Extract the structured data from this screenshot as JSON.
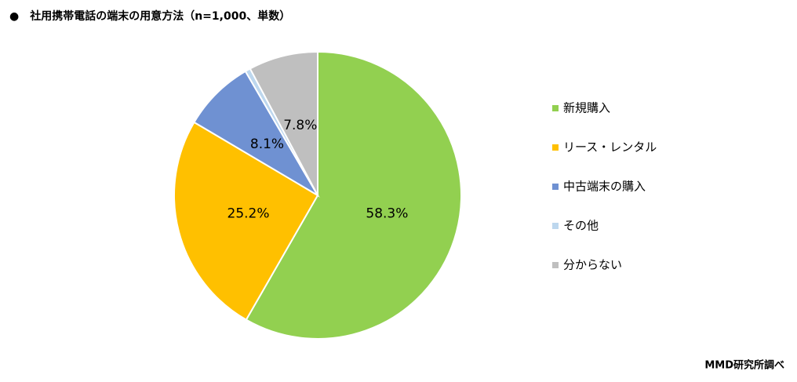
{
  "chart_data": {
    "type": "pie",
    "title": "●　社用携帯電話の端末の用意方法（n=1,000、単数）",
    "categories": [
      "新規購入",
      "リース・レンタル",
      "中古端末の購入",
      "その他",
      "分からない"
    ],
    "values": [
      58.3,
      25.2,
      8.1,
      0.6,
      7.8
    ],
    "value_labels": [
      "58.3%",
      "25.2%",
      "8.1%",
      null,
      "7.8%"
    ],
    "colors": [
      "#92d050",
      "#ffc000",
      "#6f91d2",
      "#bdd7ee",
      "#bfbfbf"
    ],
    "legend": "right",
    "source": "MMD研究所調べ"
  }
}
